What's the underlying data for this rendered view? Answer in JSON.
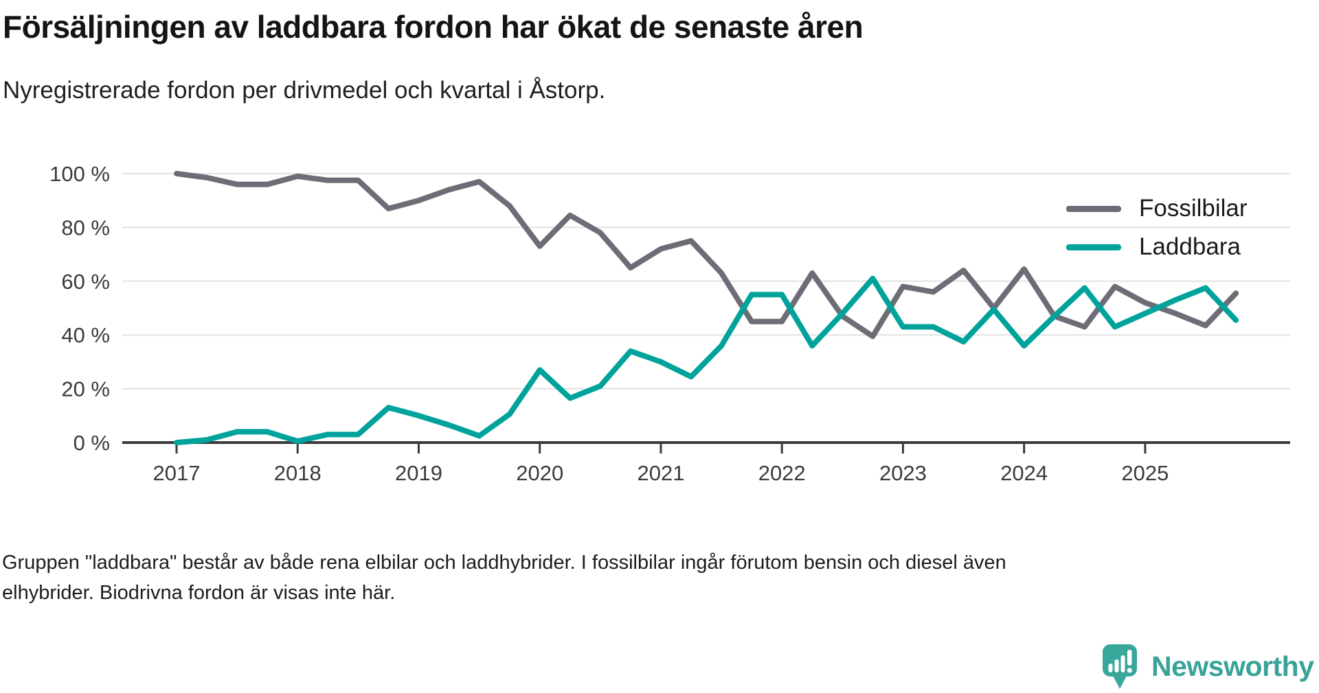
{
  "header": {
    "title": "Försäljningen av laddbara fordon har ökat de senaste åren",
    "subtitle": "Nyregistrerade fordon per drivmedel och kvartal i Åstorp."
  },
  "chart_data": {
    "type": "line",
    "title": "Nyregistrerade fordon per drivmedel och kvartal i Åstorp",
    "grid": true,
    "legend_position": "top-right",
    "ylim": [
      0,
      100
    ],
    "y_unit": "%",
    "y_ticks": [
      {
        "value": 0,
        "label": "0 %"
      },
      {
        "value": 20,
        "label": "20 %"
      },
      {
        "value": 40,
        "label": "40 %"
      },
      {
        "value": 60,
        "label": "60 %"
      },
      {
        "value": 80,
        "label": "80 %"
      },
      {
        "value": 100,
        "label": "100 %"
      }
    ],
    "x_ticks": [
      {
        "label": "2017",
        "quarter_index": 0
      },
      {
        "label": "2018",
        "quarter_index": 4
      },
      {
        "label": "2019",
        "quarter_index": 8
      },
      {
        "label": "2020",
        "quarter_index": 12
      },
      {
        "label": "2021",
        "quarter_index": 16
      },
      {
        "label": "2022",
        "quarter_index": 20
      },
      {
        "label": "2023",
        "quarter_index": 24
      },
      {
        "label": "2024",
        "quarter_index": 28
      },
      {
        "label": "2025",
        "quarter_index": 32
      }
    ],
    "quarters": [
      "2017-Q1",
      "2017-Q2",
      "2017-Q3",
      "2017-Q4",
      "2018-Q1",
      "2018-Q2",
      "2018-Q3",
      "2018-Q4",
      "2019-Q1",
      "2019-Q2",
      "2019-Q3",
      "2019-Q4",
      "2020-Q1",
      "2020-Q2",
      "2020-Q3",
      "2020-Q4",
      "2021-Q1",
      "2021-Q2",
      "2021-Q3",
      "2021-Q4",
      "2022-Q1",
      "2022-Q2",
      "2022-Q3",
      "2022-Q4",
      "2023-Q1",
      "2023-Q2",
      "2023-Q3",
      "2023-Q4",
      "2024-Q1",
      "2024-Q2",
      "2024-Q3",
      "2024-Q4",
      "2025-Q1",
      "2025-Q2",
      "2025-Q3",
      "2025-Q4"
    ],
    "series": [
      {
        "name": "Fossilbilar",
        "color": "#6d6d77",
        "values": [
          100,
          98.5,
          96,
          96,
          99,
          97.5,
          97.5,
          87,
          90,
          94,
          97,
          88,
          73,
          84.5,
          78,
          65,
          72,
          75,
          63,
          45,
          45,
          63,
          47,
          39.5,
          58,
          56,
          64,
          50,
          64.5,
          47,
          43,
          58,
          52,
          48,
          43.5,
          55.5
        ]
      },
      {
        "name": "Laddbara",
        "color": "#00a39b",
        "values": [
          0,
          1,
          4,
          4,
          0.5,
          3,
          3,
          13,
          10,
          6.5,
          2.5,
          10.5,
          27,
          16.5,
          21,
          34,
          30,
          24.5,
          36,
          55,
          55,
          36,
          48,
          61,
          43,
          43,
          37.5,
          49.5,
          36,
          47,
          57.5,
          43,
          48,
          53,
          57.5,
          45.5
        ]
      }
    ],
    "colors": {
      "grid": "#e2e2e2",
      "axis": "#3a3a3a",
      "tick_label": "#3a3a3a"
    }
  },
  "footer": {
    "note": "Gruppen \"laddbara\" består av både rena elbilar och laddhybrider. I fossilbilar ingår förutom bensin och diesel även elhybrider. Biodrivna fordon är visas inte här."
  },
  "logo": {
    "label": "Newsworthy",
    "color": "#38a398"
  }
}
